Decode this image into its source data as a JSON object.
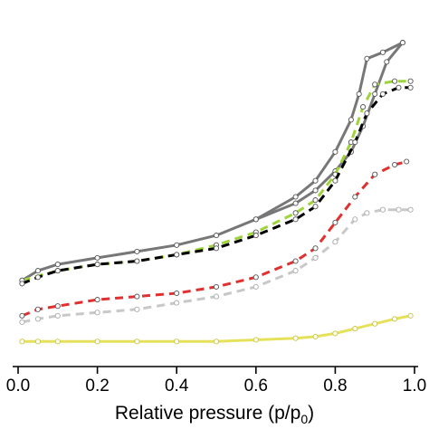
{
  "chart_data": {
    "type": "line",
    "xlabel": "Relative pressure (p/p",
    "xlabel_sub": "0",
    "xlabel_end": ")",
    "ylabel": "",
    "xlim": [
      0.0,
      1.0
    ],
    "ylim": [
      0,
      100
    ],
    "x_ticks": [
      0.0,
      0.2,
      0.4,
      0.6,
      0.8,
      1.0
    ],
    "x_tick_labels": [
      "0.0",
      "0.2",
      "0.4",
      "0.6",
      "0.8",
      "1.0"
    ],
    "series": [
      {
        "color": "#777777",
        "dash": "none",
        "marker_fill": "#ffffff",
        "x": [
          0.01,
          0.05,
          0.1,
          0.2,
          0.3,
          0.4,
          0.5,
          0.6,
          0.7,
          0.75,
          0.8,
          0.84,
          0.86,
          0.88,
          0.92,
          0.97
        ],
        "y": [
          24,
          27,
          29,
          31,
          33,
          35,
          38,
          43,
          50,
          55,
          64,
          74,
          82,
          93,
          95,
          98
        ]
      },
      {
        "color": "#777777",
        "dash": "none",
        "marker_fill": "#ffffff",
        "x": [
          0.97,
          0.93,
          0.9,
          0.87,
          0.84,
          0.8,
          0.75,
          0.7,
          0.6
        ],
        "y": [
          98,
          92,
          82,
          72,
          64,
          58,
          52,
          48,
          43
        ]
      },
      {
        "color": "#9fd33a",
        "dash": "9,6",
        "marker_fill": "#ffffff",
        "x": [
          0.01,
          0.1,
          0.2,
          0.3,
          0.4,
          0.5,
          0.6,
          0.7,
          0.75,
          0.8,
          0.84,
          0.87,
          0.9,
          0.95,
          0.99
        ],
        "y": [
          24,
          27,
          29,
          30,
          32,
          35,
          39,
          45,
          49,
          57,
          67,
          78,
          85,
          86,
          86
        ]
      },
      {
        "color": "#000000",
        "dash": "9,6",
        "marker_fill": "#ffffff",
        "x": [
          0.01,
          0.05,
          0.1,
          0.2,
          0.3,
          0.4,
          0.5,
          0.6,
          0.7,
          0.75,
          0.8,
          0.85,
          0.88,
          0.92,
          0.96,
          0.99
        ],
        "y": [
          23,
          25,
          27,
          29,
          30,
          32,
          34,
          38,
          43,
          47,
          55,
          67,
          76,
          82,
          84,
          84
        ]
      },
      {
        "color": "#e03030",
        "dash": "9,6",
        "marker_fill": "#ffffff",
        "x": [
          0.01,
          0.05,
          0.1,
          0.2,
          0.3,
          0.4,
          0.5,
          0.6,
          0.7,
          0.75,
          0.8,
          0.85,
          0.9,
          0.95,
          0.98
        ],
        "y": [
          13,
          15,
          16,
          18,
          19,
          20,
          22,
          25,
          30,
          34,
          42,
          50,
          57,
          60,
          61
        ]
      },
      {
        "color": "#c8c8c8",
        "dash": "9,6",
        "marker_fill": "#ffffff",
        "x": [
          0.01,
          0.05,
          0.1,
          0.2,
          0.3,
          0.4,
          0.5,
          0.6,
          0.7,
          0.75,
          0.8,
          0.85,
          0.88,
          0.92,
          0.96,
          0.99
        ],
        "y": [
          11,
          12,
          13,
          14,
          15,
          17,
          19,
          22,
          27,
          31,
          36,
          43,
          45,
          46,
          46,
          46
        ]
      },
      {
        "color": "#e6e15a",
        "dash": "none",
        "marker_fill": "#ffffff",
        "x": [
          0.01,
          0.05,
          0.1,
          0.2,
          0.3,
          0.4,
          0.5,
          0.6,
          0.7,
          0.75,
          0.8,
          0.85,
          0.9,
          0.95,
          0.99
        ],
        "y": [
          5,
          5,
          5,
          5,
          5,
          5,
          5,
          5.5,
          6,
          6.5,
          7.5,
          9,
          10.5,
          12,
          13
        ]
      }
    ]
  }
}
